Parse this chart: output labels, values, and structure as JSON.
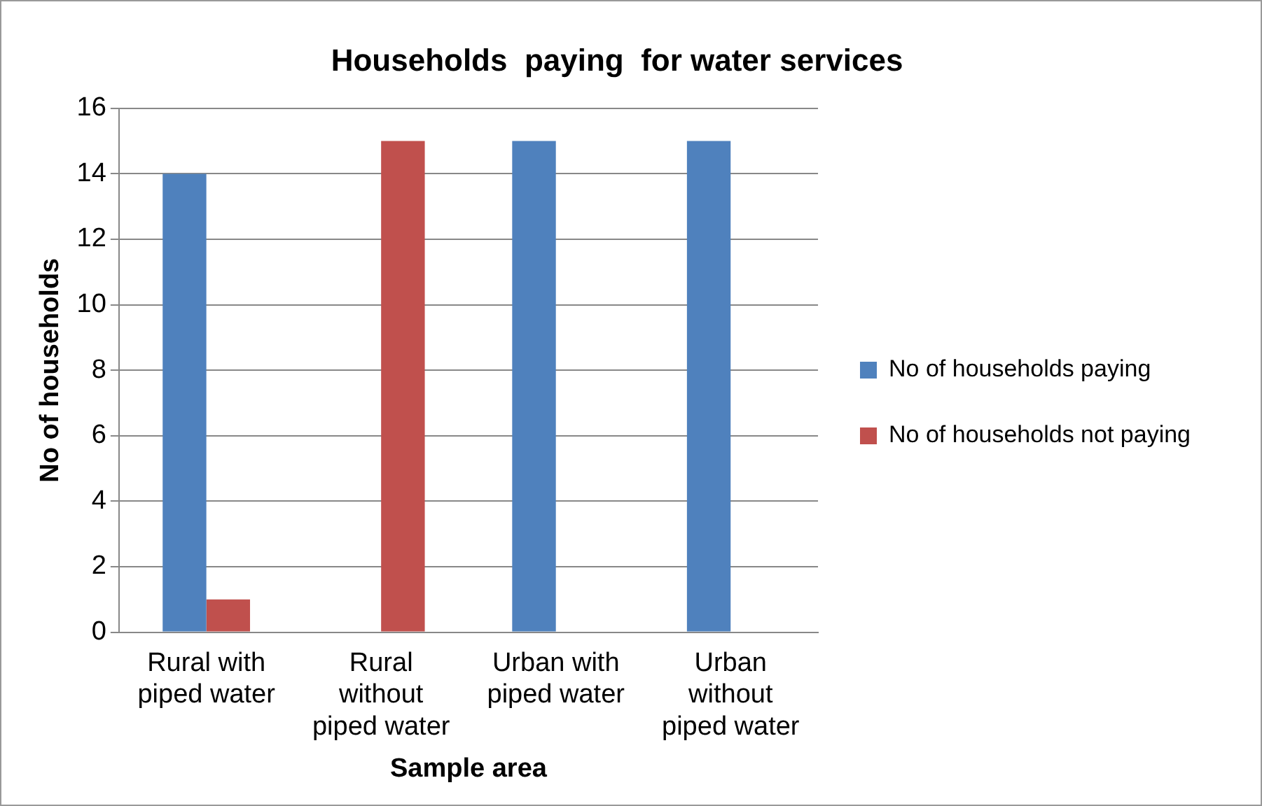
{
  "chart_data": {
    "type": "bar",
    "title": "Households  paying  for water services",
    "xlabel": "Sample area",
    "ylabel": "No of households",
    "categories": [
      "Rural with piped water",
      "Rural without piped water",
      "Urban with piped water",
      "Urban without piped water"
    ],
    "series": [
      {
        "name": "No of households paying",
        "color": "#4f81bd",
        "values": [
          14,
          0,
          15,
          15
        ]
      },
      {
        "name": "No of households not paying",
        "color": "#c0504d",
        "values": [
          1,
          15,
          0,
          0
        ]
      }
    ],
    "ylim": [
      0,
      16
    ],
    "yticks": [
      0,
      2,
      4,
      6,
      8,
      10,
      12,
      14,
      16
    ],
    "grid": "y",
    "legend": "right"
  }
}
